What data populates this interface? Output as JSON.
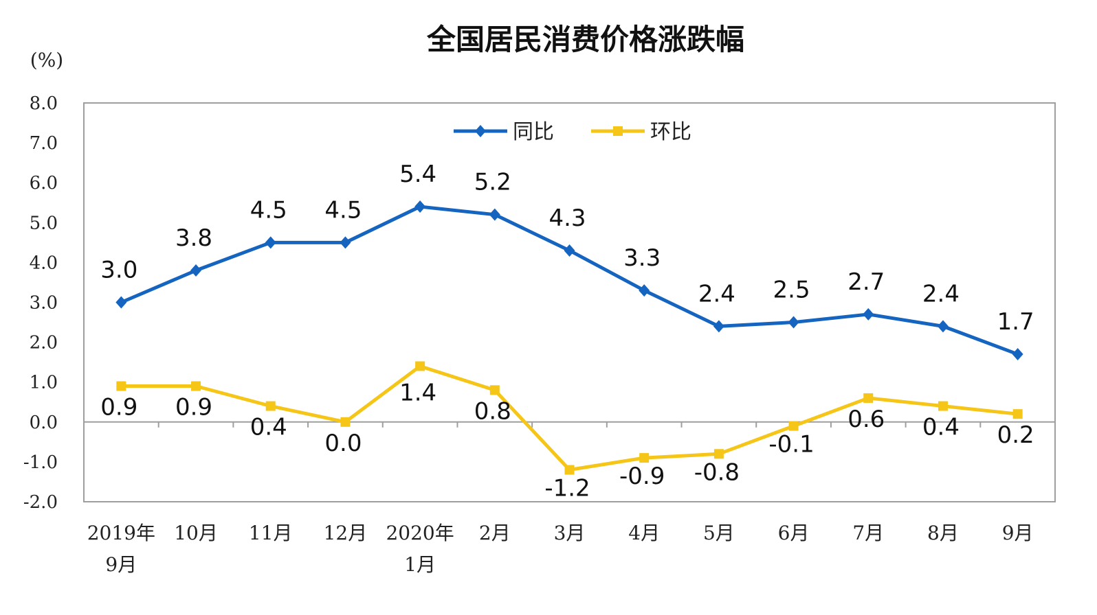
{
  "chart_data": {
    "type": "line",
    "title": "全国居民消费价格涨跌幅",
    "unit_label": "(%)",
    "categories": [
      [
        "2019年",
        "9月"
      ],
      [
        "10月"
      ],
      [
        "11月"
      ],
      [
        "12月"
      ],
      [
        "2020年",
        "1月"
      ],
      [
        "2月"
      ],
      [
        "3月"
      ],
      [
        "4月"
      ],
      [
        "5月"
      ],
      [
        "6月"
      ],
      [
        "7月"
      ],
      [
        "8月"
      ],
      [
        "9月"
      ]
    ],
    "ylim": [
      -2.0,
      8.0
    ],
    "yticks": [
      "8.0",
      "7.0",
      "6.0",
      "5.0",
      "4.0",
      "3.0",
      "2.0",
      "1.0",
      "0.0",
      "-1.0",
      "-2.0"
    ],
    "ytick_values": [
      8,
      7,
      6,
      5,
      4,
      3,
      2,
      1,
      0,
      -1,
      -2
    ],
    "grid": false,
    "legend_position": "top-center",
    "series": [
      {
        "name": "同比",
        "color": "#1565C0",
        "marker": "diamond",
        "values": [
          3.0,
          3.8,
          4.5,
          4.5,
          5.4,
          5.2,
          4.3,
          3.3,
          2.4,
          2.5,
          2.7,
          2.4,
          1.7
        ],
        "labels": [
          "3.0",
          "3.8",
          "4.5",
          "4.5",
          "5.4",
          "5.2",
          "4.3",
          "3.3",
          "2.4",
          "2.5",
          "2.7",
          "2.4",
          "1.7"
        ]
      },
      {
        "name": "环比",
        "color": "#F5C518",
        "marker": "square",
        "values": [
          0.9,
          0.9,
          0.4,
          0.0,
          1.4,
          0.8,
          -1.2,
          -0.9,
          -0.8,
          -0.1,
          0.6,
          0.4,
          0.2
        ],
        "labels": [
          "0.9",
          "0.9",
          "0.4",
          "0.0",
          "1.4",
          "0.8",
          "-1.2",
          "-0.9",
          "-0.8",
          "-0.1",
          "0.6",
          "0.4",
          "0.2"
        ]
      }
    ]
  }
}
